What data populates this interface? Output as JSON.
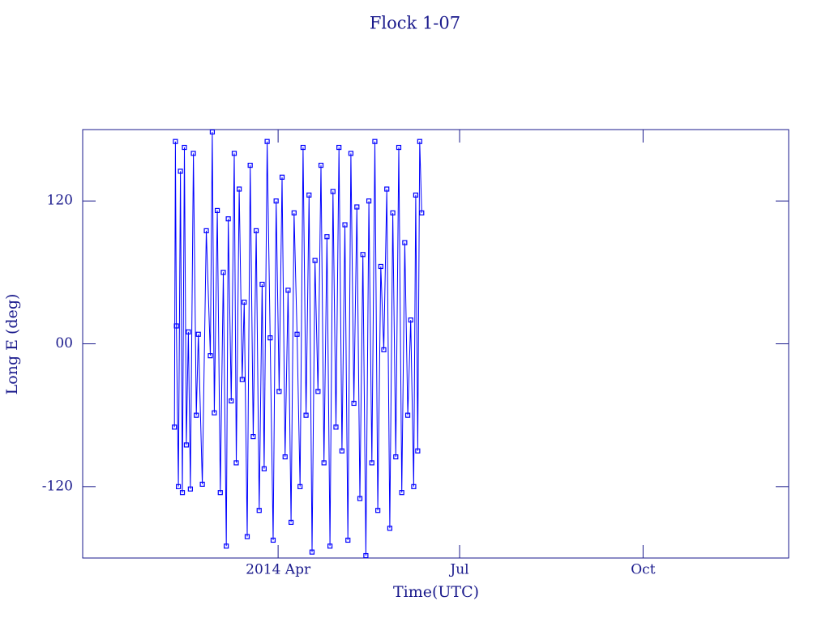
{
  "chart_data": {
    "type": "line",
    "title": "Flock 1-07",
    "xlabel": "Time(UTC)",
    "ylabel": "Long E (deg)",
    "color": "#0000ff",
    "axis_color": "#1a1a8c",
    "grid": false,
    "x": [
      39,
      39.5,
      40,
      41,
      42,
      43,
      44,
      45,
      46,
      47,
      48.5,
      50,
      51,
      53,
      55,
      57,
      58,
      59,
      60.5,
      62,
      63.5,
      65,
      66,
      67.5,
      69,
      70,
      71.5,
      73,
      74,
      75.5,
      77,
      78.5,
      80,
      81.5,
      83,
      84,
      85.5,
      87,
      88.5,
      90,
      91.5,
      93,
      94.5,
      96,
      97.5,
      99,
      100.5,
      102,
      103.5,
      105,
      106.5,
      108,
      109.5,
      111,
      112.5,
      114,
      115.5,
      117,
      118.5,
      120,
      121.5,
      123,
      124.5,
      126,
      127.5,
      129,
      130.5,
      132,
      133.5,
      135,
      136.5,
      138,
      139.5,
      141,
      142.5,
      144,
      145.5,
      147,
      148.5,
      150,
      151.5,
      153,
      154.5,
      156,
      157.5,
      159,
      160,
      161,
      162,
      163
    ],
    "values": [
      -70,
      170,
      15,
      -120,
      145,
      -125,
      165,
      -85,
      10,
      -122,
      160,
      -60,
      8,
      -118,
      95,
      -10,
      178,
      -58,
      112,
      -125,
      60,
      -170,
      105,
      -48,
      160,
      -100,
      130,
      -30,
      35,
      -162,
      150,
      -78,
      95,
      -140,
      50,
      -105,
      170,
      5,
      -165,
      120,
      -40,
      140,
      -95,
      45,
      -150,
      110,
      8,
      -120,
      165,
      -60,
      125,
      -175,
      70,
      -40,
      150,
      -100,
      90,
      -170,
      128,
      -70,
      165,
      -90,
      100,
      -165,
      160,
      -50,
      115,
      -130,
      75,
      -178,
      120,
      -100,
      170,
      -140,
      65,
      -5,
      130,
      -155,
      110,
      -95,
      165,
      -125,
      85,
      -60,
      20,
      -120,
      125,
      -90,
      170,
      110
    ],
    "xlim": [
      -7,
      347
    ],
    "xticks": [
      {
        "value": 91,
        "label": "2014 Apr"
      },
      {
        "value": 182,
        "label": "Jul"
      },
      {
        "value": 274,
        "label": "Oct"
      }
    ],
    "ylim": [
      -180,
      180
    ],
    "yticks": [
      -120,
      {
        "value": 0,
        "label": "00"
      },
      120
    ]
  }
}
